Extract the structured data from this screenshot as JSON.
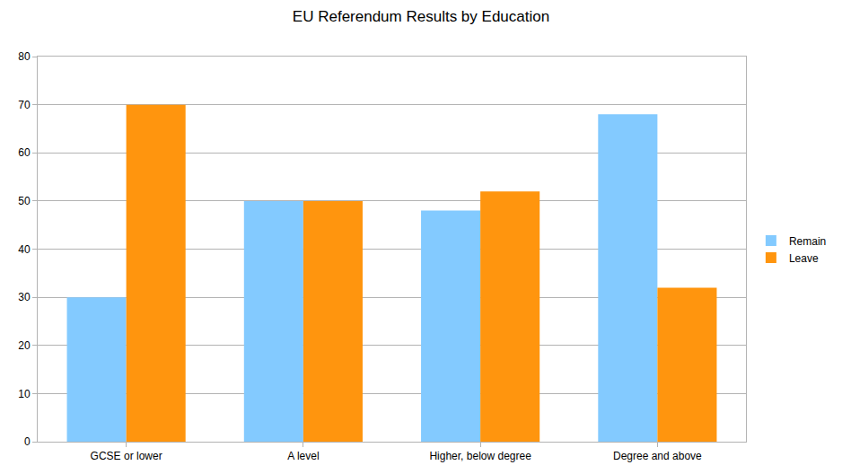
{
  "chart_data": {
    "type": "bar",
    "title": "EU Referendum Results by Education",
    "categories": [
      "GCSE or lower",
      "A level",
      "Higher, below degree",
      "Degree and above"
    ],
    "series": [
      {
        "name": "Remain",
        "color": "#83caff",
        "values": [
          30,
          50,
          48,
          68
        ]
      },
      {
        "name": "Leave",
        "color": "#ff950e",
        "values": [
          70,
          50,
          52,
          32
        ]
      }
    ],
    "ylim": [
      0,
      80
    ],
    "yticks": [
      0,
      10,
      20,
      30,
      40,
      50,
      60,
      70,
      80
    ],
    "grid": true,
    "legend": "right"
  }
}
